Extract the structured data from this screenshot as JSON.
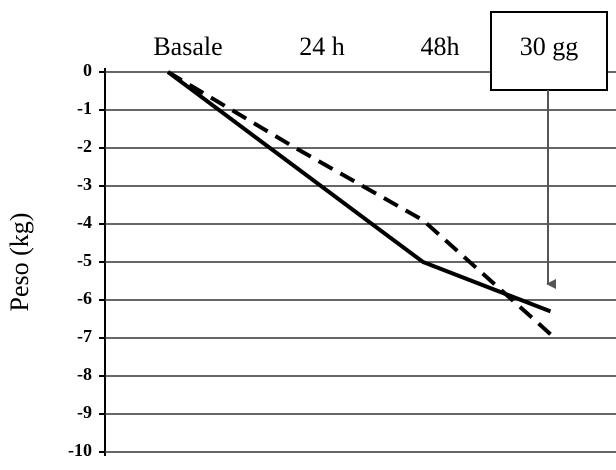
{
  "chart_data": {
    "type": "line",
    "y_label": "Peso (kg)",
    "categories": [
      "Basale",
      "24 h",
      "48h",
      "30 gg"
    ],
    "series": [
      {
        "color": "#000000",
        "line_style": "solid",
        "values": [
          0,
          -2.5,
          -5,
          -6.3
        ]
      },
      {
        "color": "#000000",
        "line_style": "dashed",
        "values": [
          0,
          -2,
          -3.9,
          -6.9
        ]
      }
    ],
    "ylim": [
      -10,
      0
    ],
    "yticks": [
      0,
      -1,
      -2,
      -3,
      -4,
      -5,
      -6,
      -7,
      -8,
      -9,
      -10
    ],
    "grid": true,
    "highlight_category": 3
  }
}
